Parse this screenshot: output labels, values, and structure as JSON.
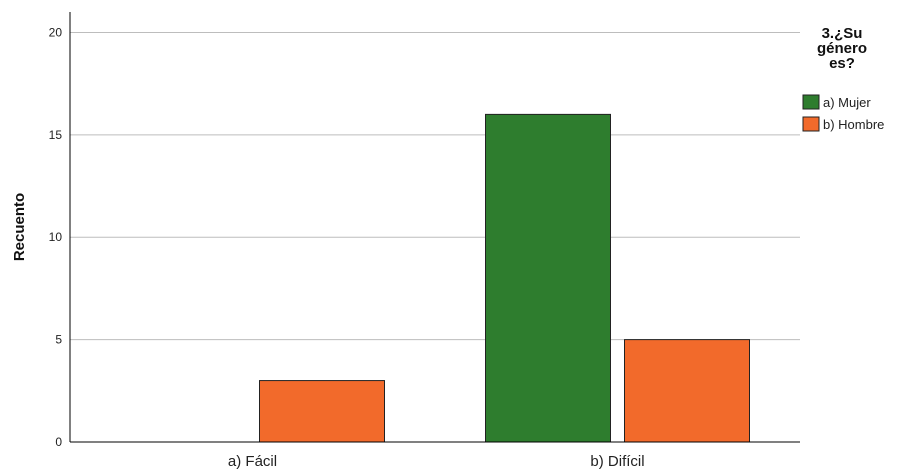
{
  "chart_data": {
    "type": "bar",
    "categories": [
      "a) Fácil",
      "b) Difícil"
    ],
    "series": [
      {
        "name": "a) Mujer",
        "color": "#2e7d2e",
        "values": [
          0,
          16
        ]
      },
      {
        "name": "b) Hombre",
        "color": "#f26a2b",
        "values": [
          3,
          5
        ]
      }
    ],
    "ylabel": "Recuento",
    "ylim": [
      0,
      21
    ],
    "yticks": [
      0,
      5,
      10,
      15,
      20
    ],
    "grid": true,
    "legend": {
      "title_lines": [
        "3.¿Su",
        "género",
        "es?"
      ],
      "position": "right"
    }
  }
}
